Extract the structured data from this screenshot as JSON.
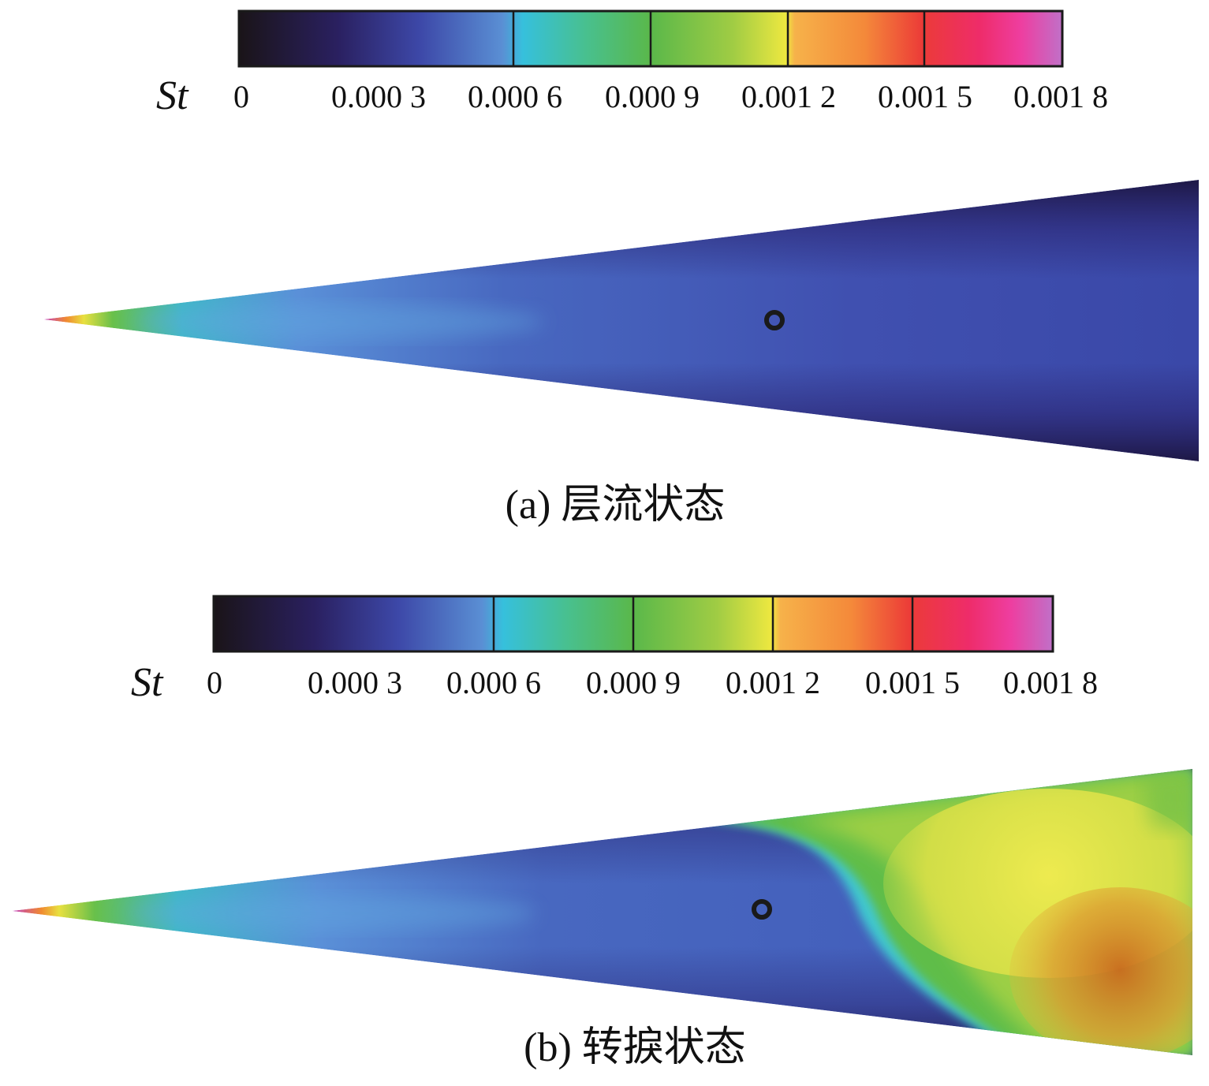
{
  "colors": {
    "background": "#ffffff",
    "text": "#111111",
    "divider": "#1a1a1a",
    "colormap": [
      "#1a1418",
      "#2a2060",
      "#3d48a8",
      "#5a8fd4",
      "#36c0dc",
      "#48c090",
      "#5ab84a",
      "#a0cc44",
      "#eee840",
      "#f6b24a",
      "#f4893a",
      "#ec3b38",
      "#ee2c6a",
      "#ee3ea0",
      "#c070c8"
    ]
  },
  "panels": [
    {
      "id": "a",
      "colorbar": {
        "variable": "St",
        "ticks": [
          "0",
          "0.000 3",
          "0.000 6",
          "0.000 9",
          "0.001 2",
          "0.001 5",
          "0.001 8"
        ]
      },
      "caption": "(a) 层流状态",
      "flow_state": "laminar",
      "marker": "probe-point"
    },
    {
      "id": "b",
      "colorbar": {
        "variable": "St",
        "ticks": [
          "0",
          "0.000 3",
          "0.000 6",
          "0.000 9",
          "0.001 2",
          "0.001 5",
          "0.001 8"
        ]
      },
      "caption": "(b) 转捩状态",
      "flow_state": "transitional",
      "marker": "probe-point"
    }
  ]
}
